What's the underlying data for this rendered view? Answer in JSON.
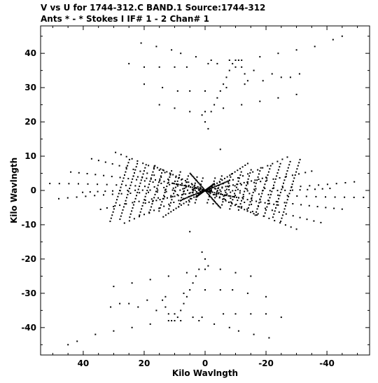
{
  "header": {
    "line1": "V vs U for 1744-312.C BAND.1   Source:1744-312",
    "line2": "Ants * - *     Stokes I  IF# 1 - 2   Chan# 1"
  },
  "chart_data": {
    "type": "scatter",
    "title": "V vs U for 1744-312.C BAND.1   Source:1744-312",
    "subtitle": "Ants * - *     Stokes I  IF# 1 - 2   Chan# 1",
    "xlabel": "Kilo Wavlngth",
    "ylabel": "Kilo Wavlngth",
    "xlim": [
      54,
      -54
    ],
    "ylim": [
      -48,
      48
    ],
    "x_inverted": true,
    "grid": false,
    "xticks": [
      40,
      20,
      0,
      -20,
      -40
    ],
    "xtick_labels": [
      "40",
      "20",
      "0",
      "-20",
      "-40"
    ],
    "yticks": [
      40,
      30,
      20,
      10,
      0,
      -10,
      -20,
      -30,
      -40
    ],
    "ytick_labels": [
      "40",
      "30",
      "20",
      "10",
      "0",
      "-10",
      "-20",
      "-30",
      "-40"
    ],
    "marker_color": "#000000",
    "series": [
      {
        "points": [
          [
            21,
            43
          ],
          [
            16,
            42
          ],
          [
            11,
            41
          ],
          [
            8,
            40
          ],
          [
            3,
            39
          ],
          [
            -2,
            38
          ],
          [
            -8,
            38
          ],
          [
            -12,
            38
          ],
          [
            -18,
            39
          ],
          [
            -24,
            40
          ],
          [
            -30,
            41
          ],
          [
            -36,
            42
          ],
          [
            -42,
            44
          ],
          [
            -45,
            45
          ],
          [
            25,
            37
          ],
          [
            20,
            36
          ],
          [
            15,
            36
          ],
          [
            10,
            36
          ],
          [
            6,
            36
          ],
          [
            -1,
            37
          ],
          [
            -4,
            37
          ],
          [
            -10,
            36
          ],
          [
            -16,
            35
          ],
          [
            -22,
            34
          ],
          [
            -28,
            33
          ],
          [
            20,
            31
          ],
          [
            14,
            30
          ],
          [
            9,
            29
          ],
          [
            5,
            29
          ],
          [
            0,
            29
          ],
          [
            -7,
            30
          ],
          [
            -13,
            31
          ],
          [
            -19,
            32
          ],
          [
            -25,
            33
          ],
          [
            -31,
            34
          ],
          [
            15,
            25
          ],
          [
            10,
            24
          ],
          [
            5,
            23
          ],
          [
            0,
            23
          ],
          [
            -6,
            24
          ],
          [
            -12,
            25
          ],
          [
            -18,
            26
          ],
          [
            -24,
            27
          ],
          [
            -30,
            28
          ],
          [
            1,
            22
          ],
          [
            0,
            20
          ],
          [
            -1,
            18
          ],
          [
            -5,
            12
          ],
          [
            -2,
            23
          ],
          [
            -3,
            25
          ],
          [
            -4,
            27
          ],
          [
            -5,
            29
          ],
          [
            -6,
            31
          ],
          [
            -7,
            33
          ],
          [
            -8,
            35
          ],
          [
            -9,
            37
          ],
          [
            -10,
            38
          ],
          [
            -11,
            38
          ],
          [
            -12,
            36
          ],
          [
            -13,
            34
          ],
          [
            -14,
            32
          ],
          [
            -21,
            -43
          ],
          [
            -16,
            -42
          ],
          [
            -11,
            -41
          ],
          [
            -8,
            -40
          ],
          [
            -3,
            -39
          ],
          [
            2,
            -38
          ],
          [
            8,
            -38
          ],
          [
            12,
            -38
          ],
          [
            18,
            -39
          ],
          [
            24,
            -40
          ],
          [
            30,
            -41
          ],
          [
            36,
            -42
          ],
          [
            42,
            -44
          ],
          [
            45,
            -45
          ],
          [
            -25,
            -37
          ],
          [
            -20,
            -36
          ],
          [
            -15,
            -36
          ],
          [
            -10,
            -36
          ],
          [
            -6,
            -36
          ],
          [
            1,
            -37
          ],
          [
            4,
            -37
          ],
          [
            10,
            -36
          ],
          [
            16,
            -35
          ],
          [
            22,
            -34
          ],
          [
            28,
            -33
          ],
          [
            -20,
            -31
          ],
          [
            -14,
            -30
          ],
          [
            -9,
            -29
          ],
          [
            -5,
            -29
          ],
          [
            0,
            -29
          ],
          [
            7,
            -30
          ],
          [
            13,
            -31
          ],
          [
            19,
            -32
          ],
          [
            25,
            -33
          ],
          [
            31,
            -34
          ],
          [
            -15,
            -25
          ],
          [
            -10,
            -24
          ],
          [
            -5,
            -23
          ],
          [
            0,
            -23
          ],
          [
            6,
            -24
          ],
          [
            12,
            -25
          ],
          [
            18,
            -26
          ],
          [
            24,
            -27
          ],
          [
            30,
            -28
          ],
          [
            -1,
            -22
          ],
          [
            0,
            -20
          ],
          [
            1,
            -18
          ],
          [
            5,
            -12
          ],
          [
            2,
            -23
          ],
          [
            3,
            -25
          ],
          [
            4,
            -27
          ],
          [
            5,
            -29
          ],
          [
            6,
            -31
          ],
          [
            7,
            -33
          ],
          [
            8,
            -35
          ],
          [
            9,
            -37
          ],
          [
            10,
            -38
          ],
          [
            11,
            -38
          ],
          [
            12,
            -36
          ],
          [
            13,
            -34
          ],
          [
            14,
            -32
          ]
        ]
      }
    ]
  }
}
